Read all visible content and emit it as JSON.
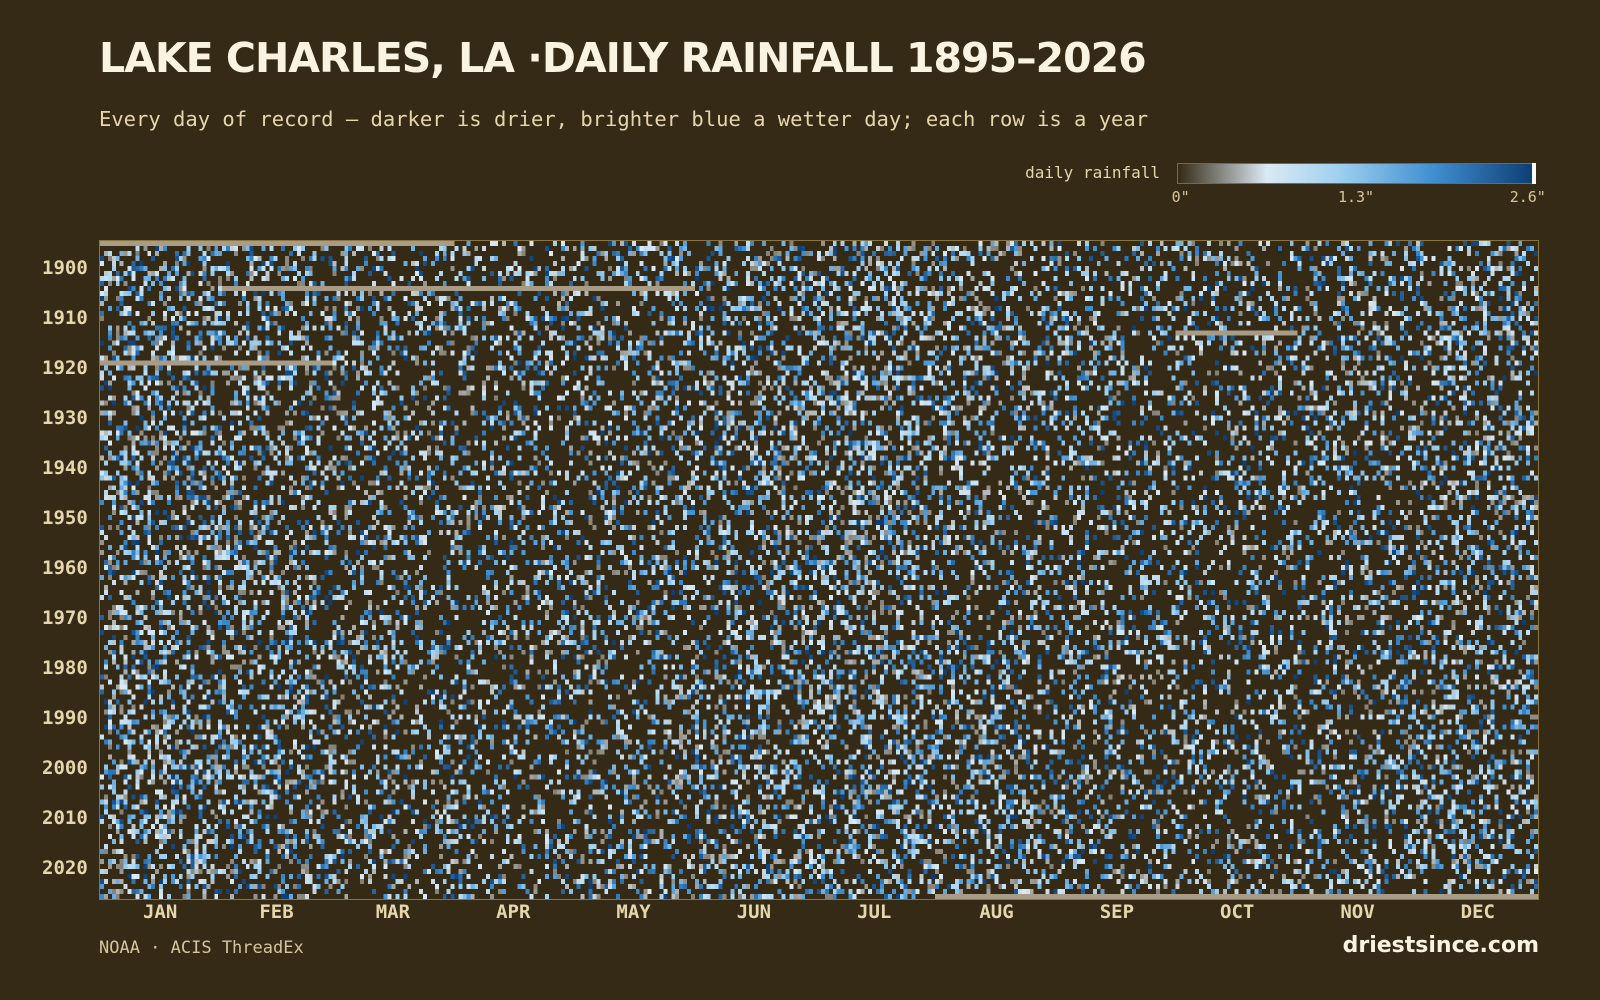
{
  "chart_data": {
    "type": "heatmap",
    "title": "LAKE CHARLES, LA ·DAILY RAINFALL 1895–2026",
    "subtitle": "Every day of record — darker is drier, brighter blue a wetter day; each row is a year",
    "x_axis": {
      "variable": "day of year",
      "tick_labels": [
        "JAN",
        "FEB",
        "MAR",
        "APR",
        "MAY",
        "JUN",
        "JUL",
        "AUG",
        "SEP",
        "OCT",
        "NOV",
        "DEC"
      ],
      "xlim": [
        1,
        365
      ]
    },
    "y_axis": {
      "variable": "year",
      "tick_labels": [
        "1900",
        "1910",
        "1920",
        "1930",
        "1940",
        "1950",
        "1960",
        "1970",
        "1980",
        "1990",
        "2000",
        "2010",
        "2020"
      ],
      "tick_values": [
        1900,
        1910,
        1920,
        1930,
        1940,
        1950,
        1960,
        1970,
        1980,
        1990,
        2000,
        2010,
        2020
      ],
      "ylim": [
        1895,
        2026
      ]
    },
    "color_scale": {
      "label": "daily rainfall",
      "range": [
        0,
        2.6
      ],
      "unit": "in",
      "tick_labels": [
        "0\"",
        "1.3\"",
        "2.6\""
      ],
      "tick_values": [
        0,
        1.3,
        2.6
      ],
      "colors": [
        "#352a15",
        "#dbe9f3",
        "#9fd0ef",
        "#3f8ed0",
        "#0d3d73"
      ]
    },
    "missing_data_color": "#a89c86",
    "missing_data_runs": [
      {
        "year": 1895,
        "start_month": "JAN",
        "end_month": "MAR"
      },
      {
        "year": 1904,
        "start_month": "FEB",
        "end_month": "MAY"
      },
      {
        "year": 1913,
        "start_month": "OCT",
        "end_month": "OCT"
      },
      {
        "year": 1919,
        "start_month": "JAN",
        "end_month": "FEB"
      },
      {
        "year": 2026,
        "start_month": "AUG",
        "end_month": "DEC"
      }
    ],
    "grid": false,
    "legend_position": "top-right"
  },
  "footer": {
    "source": "NOAA · ACIS ThreadEx",
    "brand": "driestsince.com"
  }
}
